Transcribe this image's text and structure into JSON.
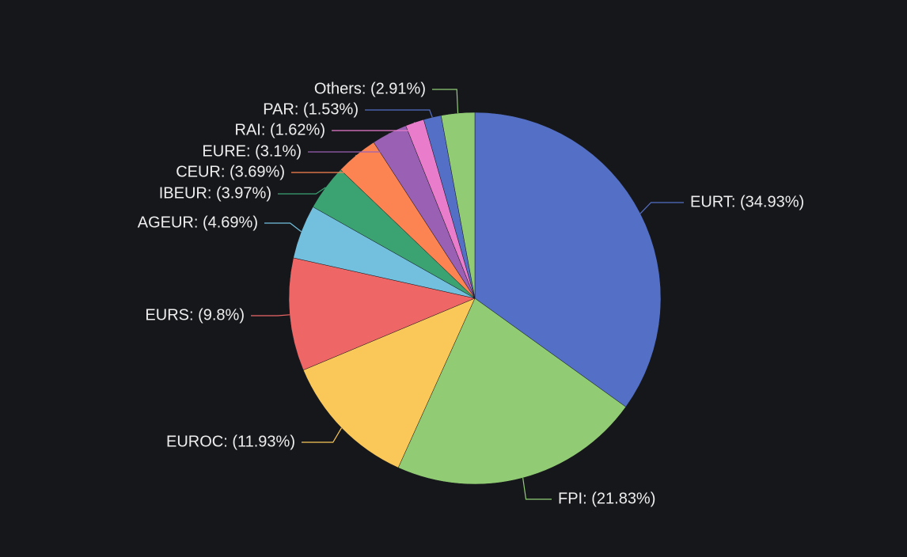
{
  "chart_data": {
    "type": "pie",
    "values": [
      34.93,
      21.83,
      11.93,
      9.8,
      4.69,
      3.97,
      3.69,
      3.1,
      1.62,
      1.53,
      2.91
    ],
    "value_labels": [
      "EURT: (34.93%)",
      "FPI: (21.83%)",
      "EUROC: (11.93%)",
      "EURS: (9.8%)",
      "AGEUR: (4.69%)",
      "IBEUR: (3.97%)",
      "CEUR: (3.69%)",
      "EURE: (3.1%)",
      "RAI: (1.62%)",
      "PAR: (1.53%)",
      "Others: (2.91%)"
    ],
    "colors": [
      "#5470c6",
      "#91cc75",
      "#fac858",
      "#ee6666",
      "#73c0de",
      "#3ba272",
      "#fc8452",
      "#9a60b4",
      "#ea7ccc",
      "#5470c6",
      "#91cc75"
    ]
  }
}
